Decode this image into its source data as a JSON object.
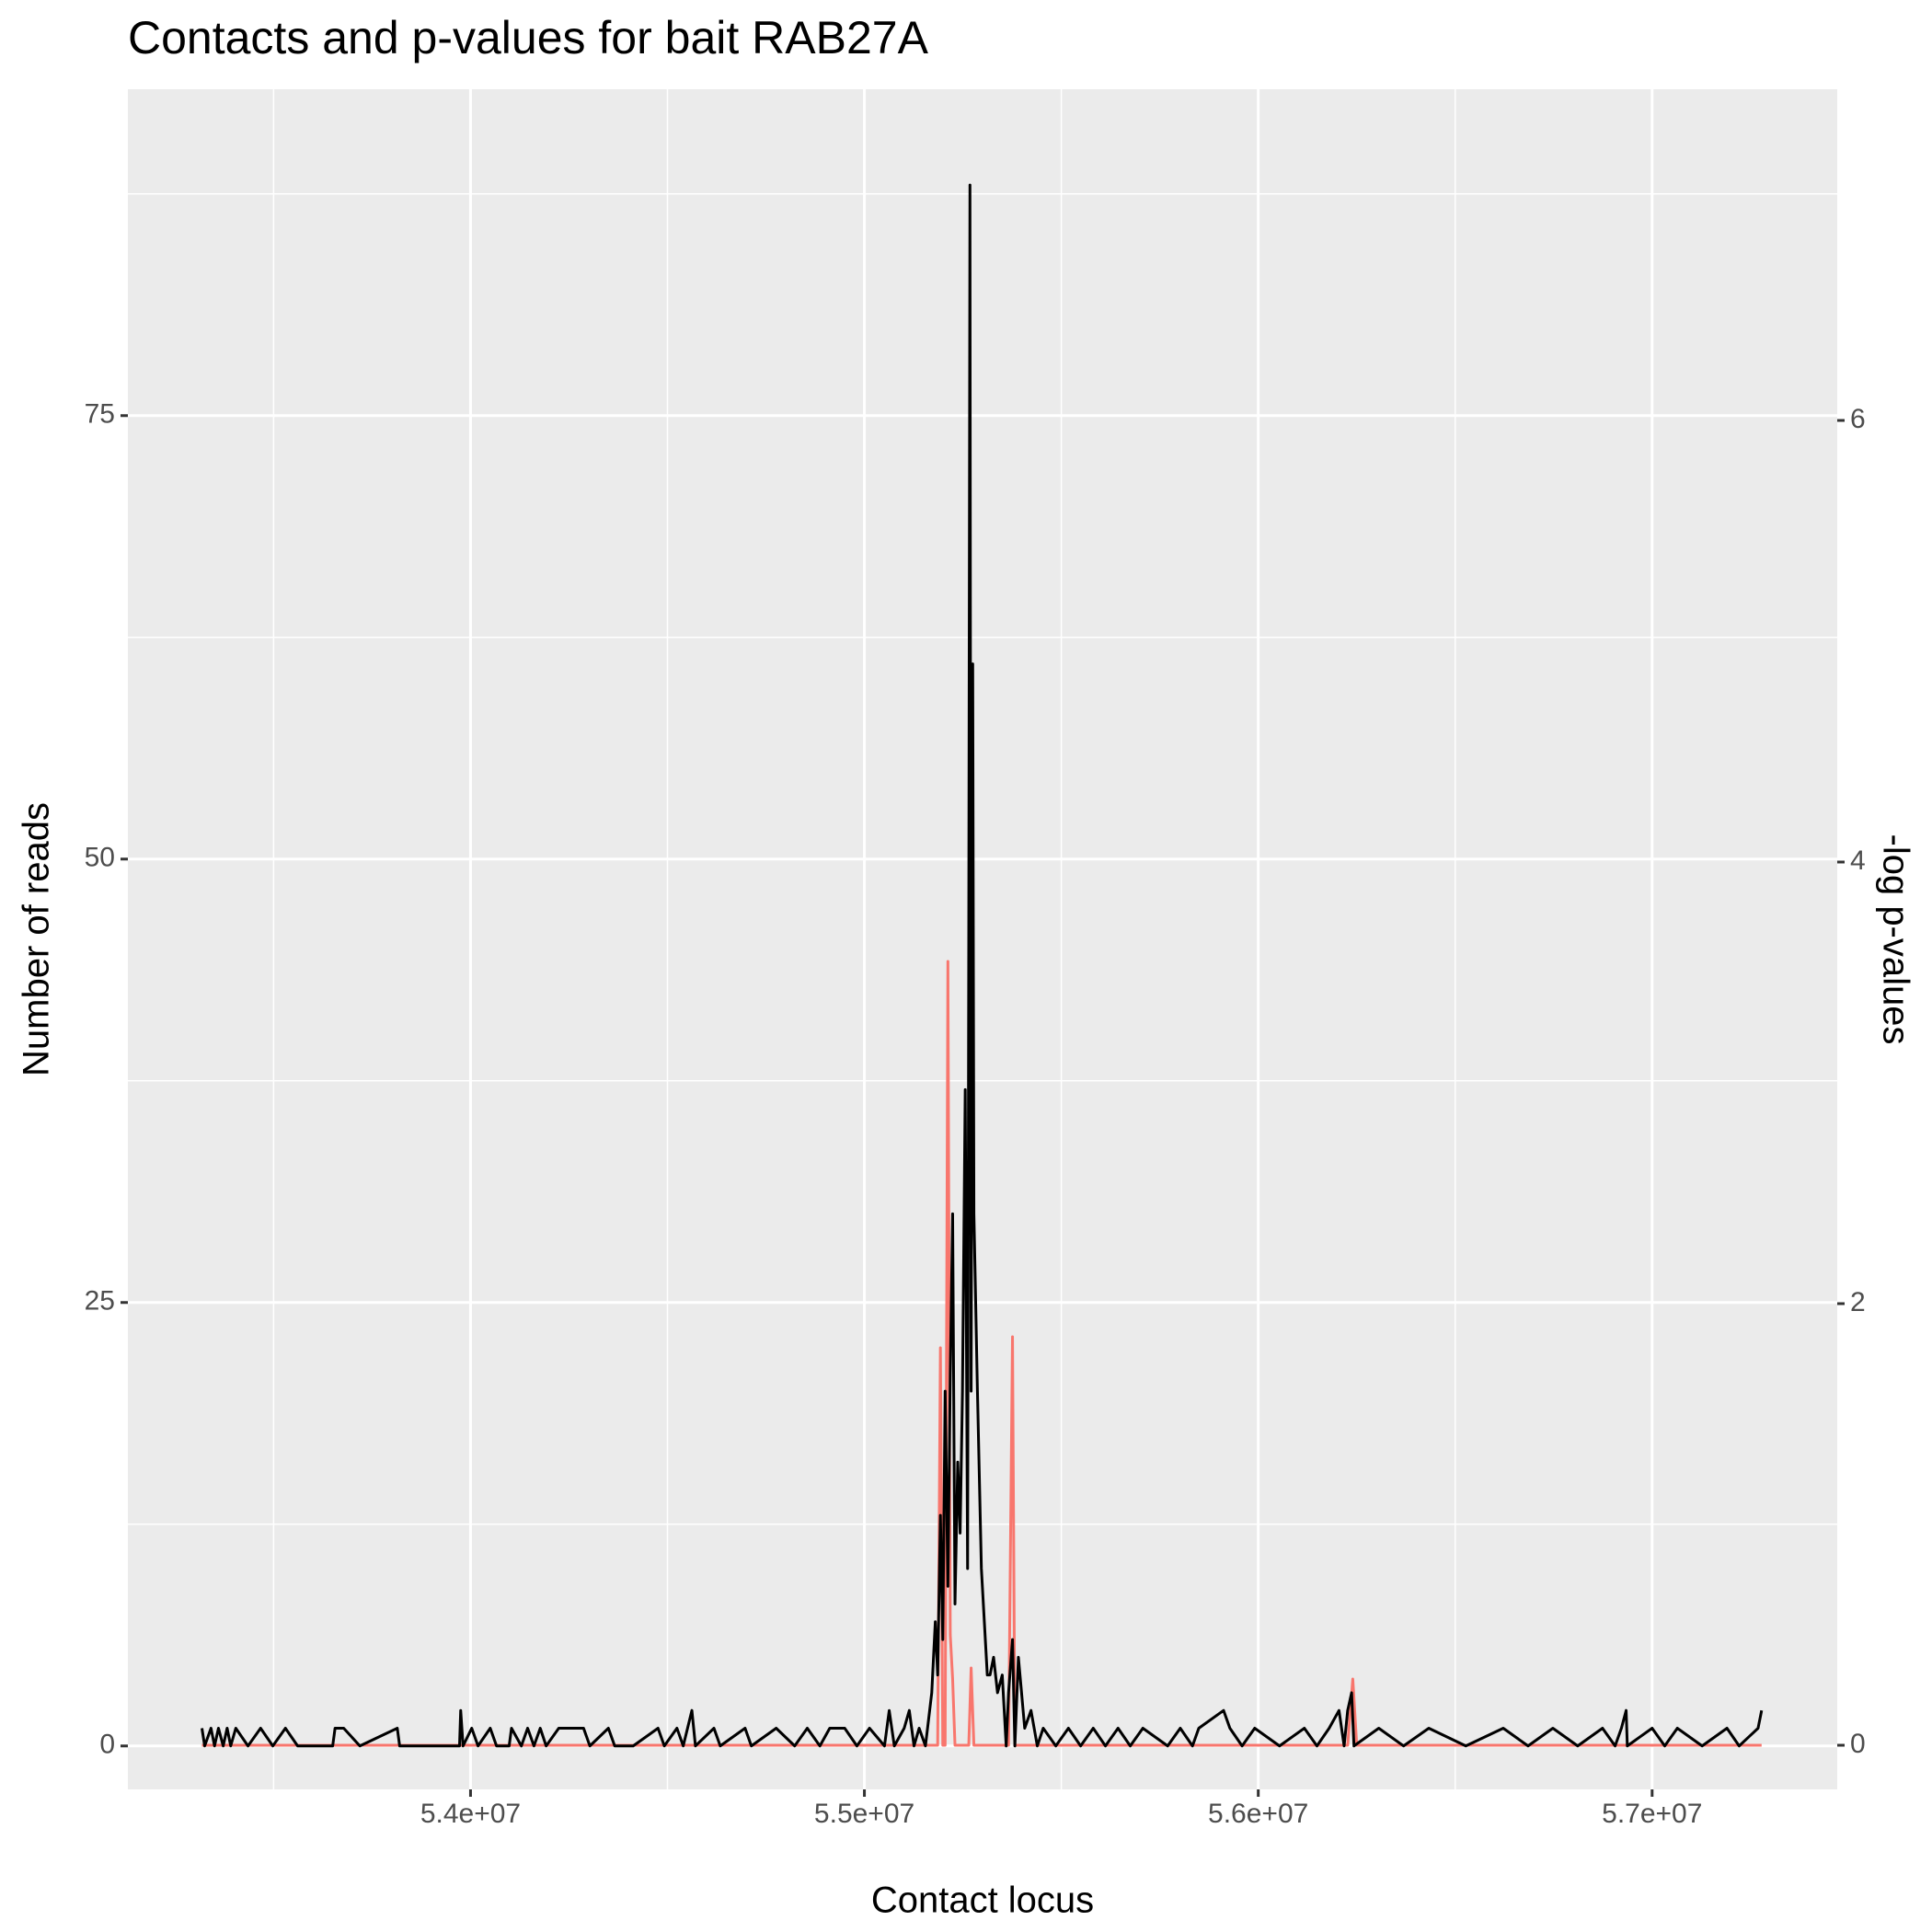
{
  "chart_data": {
    "type": "line",
    "title": "Contacts and p-values for bait RAB27A",
    "x_label": "Contact locus",
    "y_label": "Number of reads",
    "y2_label": "-log p-values",
    "xlim": [
      53130000,
      57470000
    ],
    "ylim": [
      -2.45,
      93.4
    ],
    "y2lim": [
      -0.2,
      7.5
    ],
    "xticks": [
      {
        "value": 54000000,
        "label": "5.4e+07"
      },
      {
        "value": 55000000,
        "label": "5.5e+07"
      },
      {
        "value": 56000000,
        "label": "5.6e+07"
      },
      {
        "value": 57000000,
        "label": "5.7e+07"
      }
    ],
    "yticks": [
      0,
      25,
      50,
      75
    ],
    "y2ticks": [
      0,
      2,
      4,
      6
    ],
    "grid": true,
    "series": [
      {
        "color": "#f8766d",
        "axis": "y2",
        "x": [
          53318000,
          55186000,
          55193000,
          55199000,
          55205000,
          55212000,
          55218000,
          55224000,
          55230000,
          55265000,
          55271000,
          55278000,
          55366000,
          55376000,
          55382000,
          56227000,
          56240000,
          56250000,
          57278000
        ],
        "values": [
          0,
          0,
          1.8,
          0,
          0,
          3.55,
          0.5,
          0.3,
          0,
          0,
          0.35,
          0,
          0,
          1.85,
          0,
          0,
          0.3,
          0,
          0
        ]
      },
      {
        "color": "#000000",
        "x": [
          53318000,
          53325000,
          53341000,
          53350000,
          53360000,
          53372000,
          53382000,
          53391000,
          53404000,
          53435000,
          53467000,
          53498000,
          53530000,
          53561000,
          53650000,
          53656000,
          53678000,
          53719000,
          53814000,
          53820000,
          53972000,
          53975000,
          53981000,
          54003000,
          54019000,
          54050000,
          54066000,
          54098000,
          54104000,
          54129000,
          54145000,
          54161000,
          54177000,
          54192000,
          54224000,
          54287000,
          54303000,
          54350000,
          54366000,
          54413000,
          54476000,
          54492000,
          54524000,
          54540000,
          54562000,
          54571000,
          54618000,
          54634000,
          54697000,
          54713000,
          54776000,
          54823000,
          54855000,
          54887000,
          54912000,
          54950000,
          54981000,
          55013000,
          55051000,
          55063000,
          55076000,
          55101000,
          55114000,
          55126000,
          55139000,
          55155000,
          55171000,
          55180000,
          55186000,
          55193000,
          55199000,
          55205000,
          55212000,
          55218000,
          55224000,
          55230000,
          55237000,
          55243000,
          55249000,
          55256000,
          55262000,
          55265000,
          55268000,
          55271000,
          55275000,
          55278000,
          55287000,
          55297000,
          55312000,
          55319000,
          55328000,
          55338000,
          55350000,
          55360000,
          55366000,
          55376000,
          55382000,
          55391000,
          55407000,
          55423000,
          55439000,
          55454000,
          55486000,
          55518000,
          55549000,
          55581000,
          55612000,
          55644000,
          55675000,
          55707000,
          55770000,
          55802000,
          55833000,
          55849000,
          55912000,
          55928000,
          55959000,
          55991000,
          56054000,
          56117000,
          56149000,
          56180000,
          56205000,
          56218000,
          56227000,
          56237000,
          56243000,
          56306000,
          56369000,
          56433000,
          56527000,
          56622000,
          56685000,
          56748000,
          56811000,
          56874000,
          56906000,
          56922000,
          56934000,
          56937000,
          57000000,
          57032000,
          57064000,
          57127000,
          57190000,
          57221000,
          57269000,
          57278000
        ],
        "values": [
          1,
          0,
          1,
          0,
          1,
          0,
          1,
          0,
          1,
          0,
          1,
          0,
          1,
          0,
          0,
          1,
          1,
          0,
          1,
          0,
          0,
          2,
          0,
          1,
          0,
          1,
          0,
          0,
          1,
          0,
          1,
          0,
          1,
          0,
          1,
          1,
          0,
          1,
          0,
          0,
          1,
          0,
          1,
          0,
          2,
          0,
          1,
          0,
          1,
          0,
          1,
          0,
          1,
          0,
          1,
          1,
          0,
          1,
          0,
          2,
          0,
          1,
          2,
          0,
          1,
          0,
          3,
          7,
          4,
          13,
          6,
          20,
          9,
          21,
          30,
          8,
          16,
          12,
          20,
          37,
          10,
          46,
          88,
          20,
          61,
          30,
          20,
          10,
          4,
          4,
          5,
          3,
          4,
          0,
          3,
          6,
          0,
          5,
          1,
          2,
          0,
          1,
          0,
          1,
          0,
          1,
          0,
          1,
          0,
          1,
          0,
          1,
          0,
          1,
          2,
          1,
          0,
          1,
          0,
          1,
          0,
          1,
          2,
          0,
          2,
          3,
          0,
          1,
          0,
          1,
          0,
          1,
          0,
          1,
          0,
          1,
          0,
          1,
          2,
          0,
          1,
          0,
          1,
          0,
          1,
          0,
          1,
          2
        ]
      }
    ]
  }
}
